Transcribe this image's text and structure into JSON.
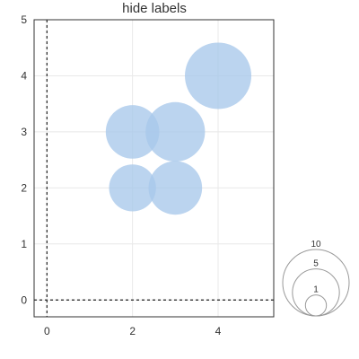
{
  "chart_data": {
    "type": "scatter",
    "title": "hide labels",
    "xlabel": "",
    "ylabel": "",
    "xlim": [
      -0.3,
      5.3
    ],
    "ylim": [
      -0.3,
      5.0
    ],
    "x_ticks": [
      0,
      2,
      4
    ],
    "x_tick_labels": [
      "0",
      "2",
      "4"
    ],
    "y_ticks": [
      0,
      1,
      2,
      3,
      4,
      5
    ],
    "y_tick_labels": [
      "0",
      "1",
      "2",
      "3",
      "4",
      "5"
    ],
    "grid": true,
    "zero_lines": true,
    "bubble_color": "#a8c8ea",
    "bubble_overlap_color": "#8fb8e4",
    "points": [
      {
        "x": 2,
        "y": 2,
        "size": 5
      },
      {
        "x": 3,
        "y": 2,
        "size": 6.5
      },
      {
        "x": 2,
        "y": 3,
        "size": 6.5
      },
      {
        "x": 3,
        "y": 3,
        "size": 8
      },
      {
        "x": 4,
        "y": 4,
        "size": 10
      }
    ],
    "size_legend": {
      "placement": "bottom-right",
      "values": [
        10,
        5,
        1
      ],
      "labels": [
        "10",
        "5",
        "1"
      ]
    }
  }
}
